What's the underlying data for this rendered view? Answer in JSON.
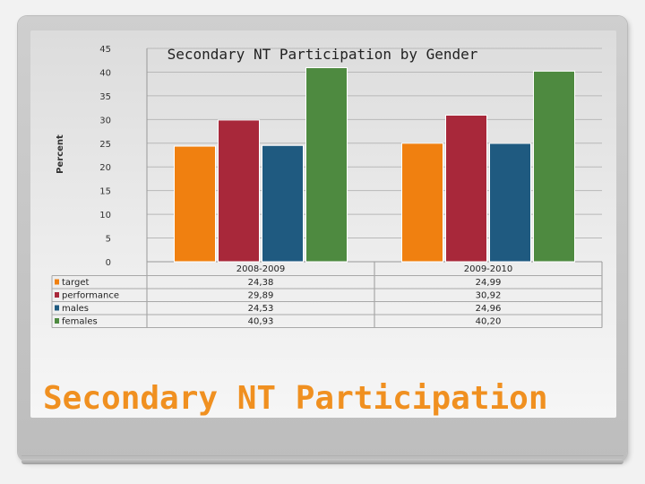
{
  "slide": {
    "title": "Secondary NT Participation"
  },
  "chart_data": {
    "type": "bar",
    "title": "Secondary NT Participation by Gender",
    "ylabel": "Percent",
    "xlabel": "",
    "ylim": [
      0,
      45
    ],
    "yticks": [
      "0",
      "5",
      "10",
      "15",
      "20",
      "25",
      "30",
      "35",
      "40",
      "45"
    ],
    "grid": true,
    "legend_placement": "data-table-left",
    "categories": [
      "2008-2009",
      "2009-2010"
    ],
    "series": [
      {
        "name": "target",
        "values": [
          24.38,
          24.99
        ],
        "labels": [
          "24,38",
          "24,99"
        ],
        "color": "#f08010"
      },
      {
        "name": "performance",
        "values": [
          29.89,
          30.92
        ],
        "labels": [
          "29,89",
          "30,92"
        ],
        "color": "#a8283a"
      },
      {
        "name": "males",
        "values": [
          24.53,
          24.96
        ],
        "labels": [
          "24,53",
          "24,96"
        ],
        "color": "#1f5a80"
      },
      {
        "name": "females",
        "values": [
          40.93,
          40.2
        ],
        "labels": [
          "40,93",
          "40,20"
        ],
        "color": "#4e8a40"
      }
    ]
  }
}
